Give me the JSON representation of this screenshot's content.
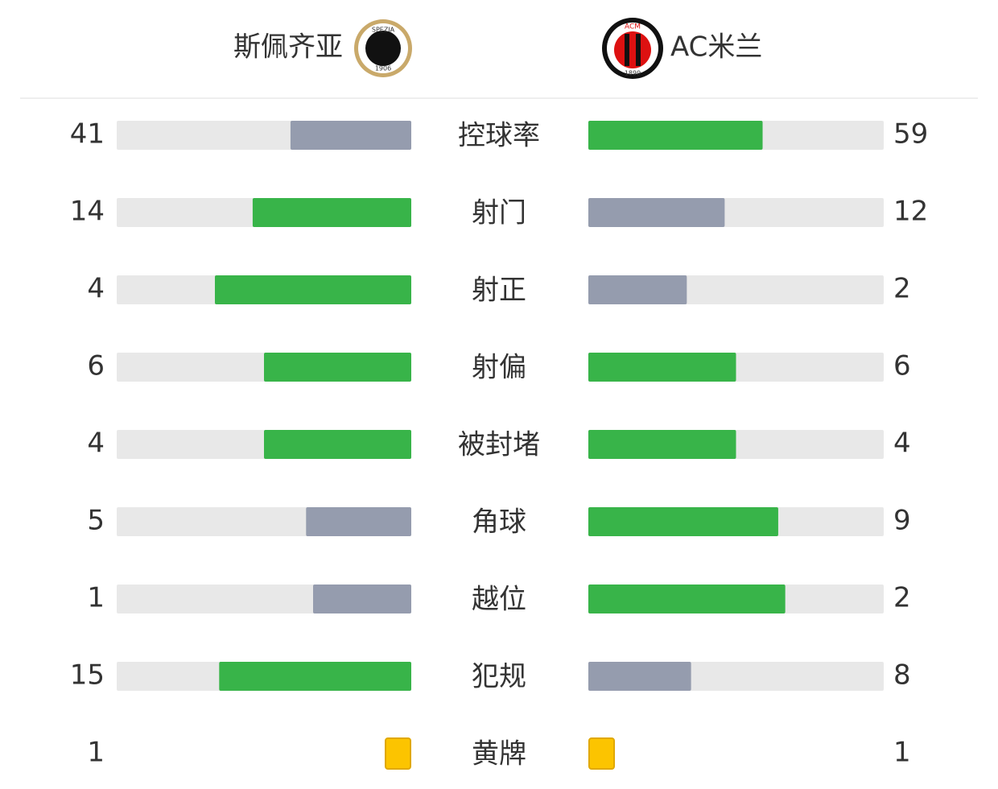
{
  "header": {
    "home": {
      "name": "斯佩齐亚",
      "logo_text": [
        "SPEZIA",
        "1906"
      ]
    },
    "away": {
      "name": "AC米兰",
      "logo_text": [
        "ACM",
        "1899"
      ]
    }
  },
  "colors": {
    "more": "#38b449",
    "less": "#959cae",
    "track": "#e8e8e8",
    "card": "#fcc400"
  },
  "stats": [
    {
      "label": "控球率",
      "home": 41,
      "away": 59
    },
    {
      "label": "射门",
      "home": 14,
      "away": 12
    },
    {
      "label": "射正",
      "home": 4,
      "away": 2
    },
    {
      "label": "射偏",
      "home": 6,
      "away": 6
    },
    {
      "label": "被封堵",
      "home": 4,
      "away": 4
    },
    {
      "label": "角球",
      "home": 5,
      "away": 9
    },
    {
      "label": "越位",
      "home": 1,
      "away": 2
    },
    {
      "label": "犯规",
      "home": 15,
      "away": 8
    },
    {
      "label": "黄牌",
      "home": 1,
      "away": 1,
      "marker": "card"
    }
  ]
}
